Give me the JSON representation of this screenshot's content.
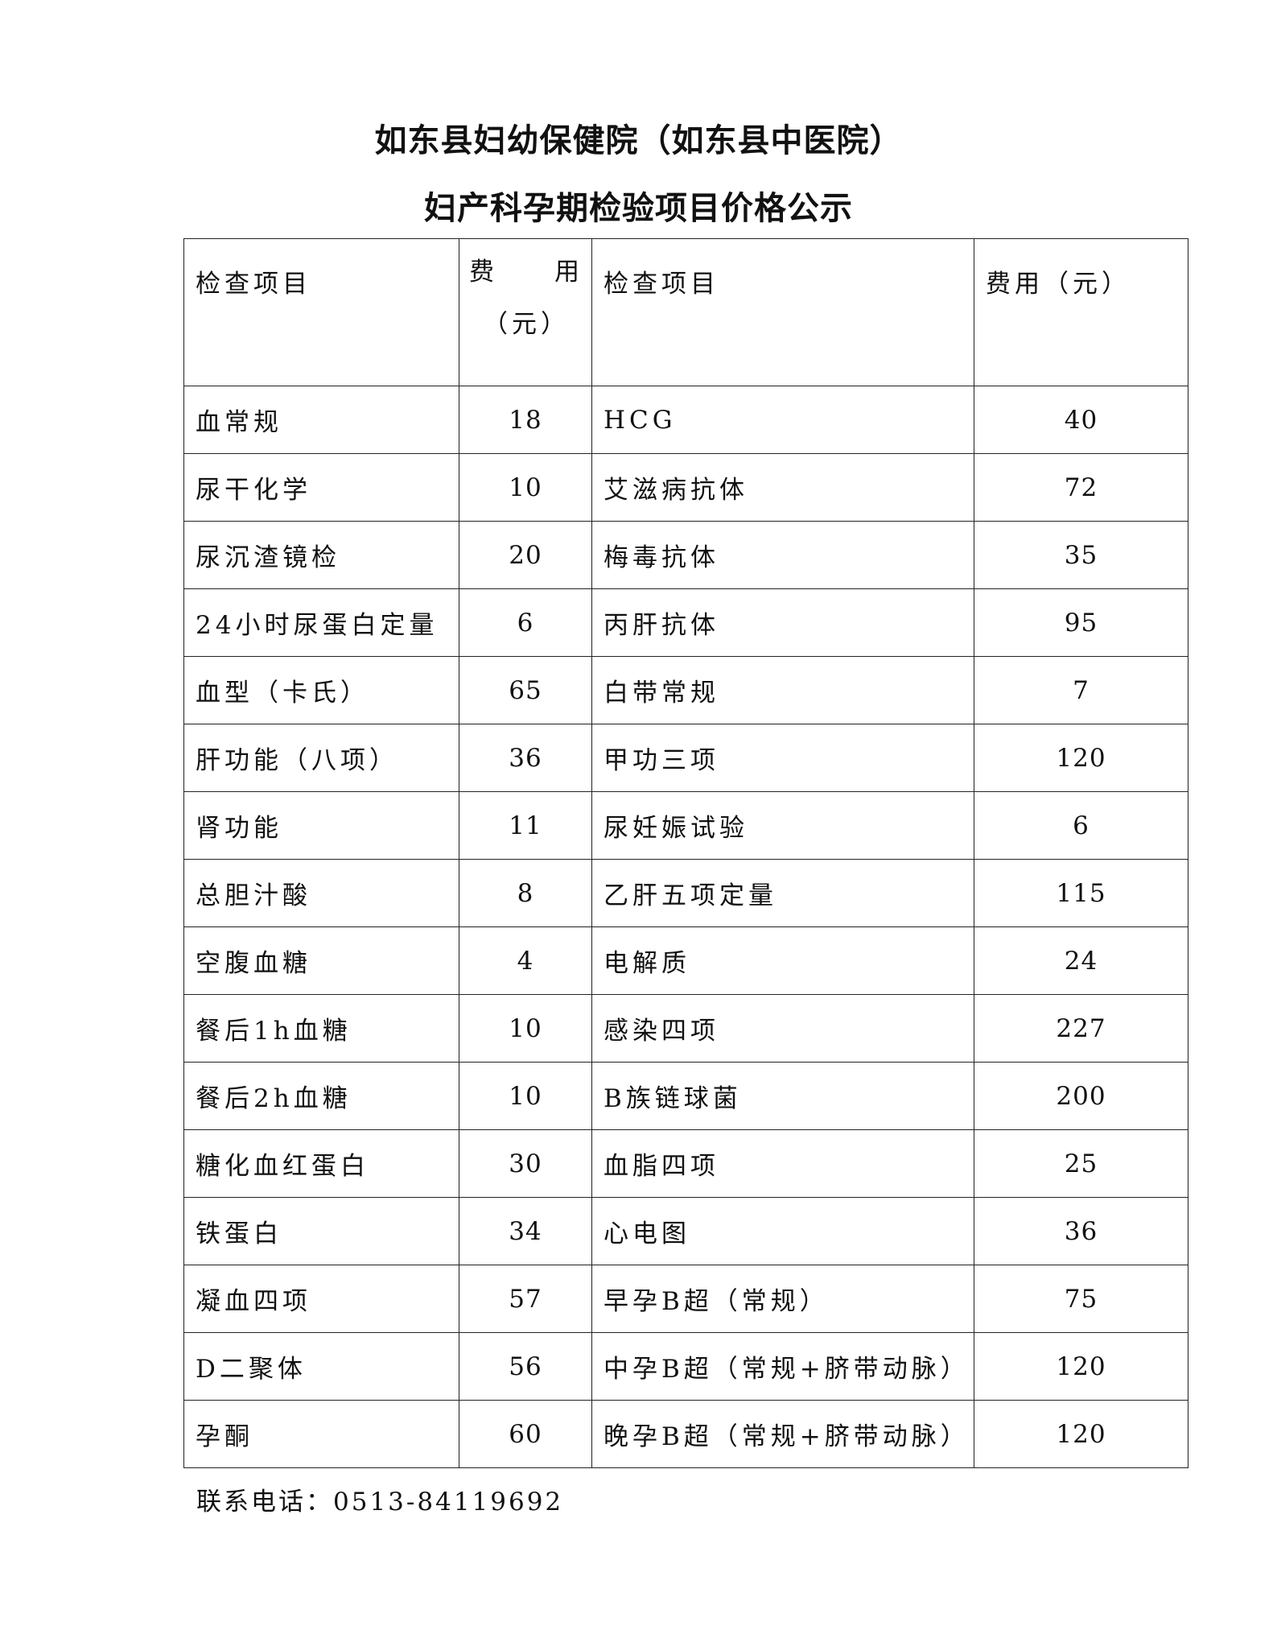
{
  "title_line1": "如东县妇幼保健院（如东县中医院）",
  "title_line2": "妇产科孕期检验项目价格公示",
  "headers": {
    "item1": "检查项目",
    "fee1_a": "费",
    "fee1_b": "用",
    "fee1_c": "（元）",
    "item2": "检查项目",
    "fee2": "费用（元）"
  },
  "rows": [
    {
      "item1": "血常规",
      "fee1": "18",
      "item2": "HCG",
      "fee2": "40"
    },
    {
      "item1": "尿干化学",
      "fee1": "10",
      "item2": "艾滋病抗体",
      "fee2": "72"
    },
    {
      "item1": "尿沉渣镜检",
      "fee1": "20",
      "item2": "梅毒抗体",
      "fee2": "35"
    },
    {
      "item1": "24小时尿蛋白定量",
      "fee1": "6",
      "item2": "丙肝抗体",
      "fee2": "95"
    },
    {
      "item1": "血型（卡氏）",
      "fee1": "65",
      "item2": "白带常规",
      "fee2": "7"
    },
    {
      "item1": "肝功能（八项）",
      "fee1": "36",
      "item2": "甲功三项",
      "fee2": "120"
    },
    {
      "item1": "肾功能",
      "fee1": "11",
      "item2": "尿妊娠试验",
      "fee2": "6"
    },
    {
      "item1": "总胆汁酸",
      "fee1": "8",
      "item2": "乙肝五项定量",
      "fee2": "115"
    },
    {
      "item1": "空腹血糖",
      "fee1": "4",
      "item2": "电解质",
      "fee2": "24"
    },
    {
      "item1": "餐后1h血糖",
      "fee1": "10",
      "item2": "感染四项",
      "fee2": "227"
    },
    {
      "item1": "餐后2h血糖",
      "fee1": "10",
      "item2": "B族链球菌",
      "fee2": "200"
    },
    {
      "item1": "糖化血红蛋白",
      "fee1": "30",
      "item2": "血脂四项",
      "fee2": "25"
    },
    {
      "item1": "铁蛋白",
      "fee1": "34",
      "item2": "心电图",
      "fee2": "36"
    },
    {
      "item1": "凝血四项",
      "fee1": "57",
      "item2": "早孕B超（常规）",
      "fee2": "75"
    },
    {
      "item1": "D二聚体",
      "fee1": "56",
      "item2": "中孕B超（常规+脐带动脉）",
      "fee2": "120"
    },
    {
      "item1": "孕酮",
      "fee1": "60",
      "item2": "晚孕B超（常规+脐带动脉）",
      "fee2": "120"
    }
  ],
  "footer": "联系电话：0513-84119692"
}
